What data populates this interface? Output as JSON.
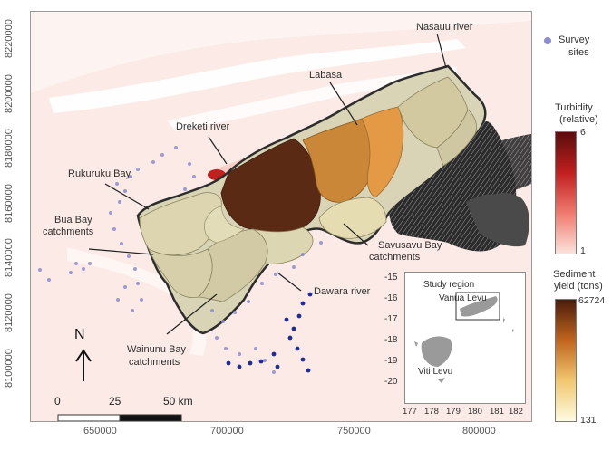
{
  "y_axis_ticks": [
    "8220000",
    "8200000",
    "8180000",
    "8160000",
    "8140000",
    "8120000",
    "8100000"
  ],
  "x_axis_ticks": [
    "650000",
    "700000",
    "750000",
    "800000"
  ],
  "place_labels": {
    "nasauu": "Nasauu river",
    "labasa": "Labasa",
    "dreketi": "Dreketi river",
    "rukuruku": "Rukuruku Bay",
    "bua_line1": "Bua Bay",
    "bua_line2": "catchments",
    "savusavu_line1": "Savusavu Bay",
    "savusavu_line2": "catchments",
    "dawara": "Dawara river",
    "wainunu_line1": "Wainunu Bay",
    "wainunu_line2": "catchments"
  },
  "north_arrow": "N",
  "scale_bar": {
    "labels": [
      "0",
      "25",
      "50 km"
    ]
  },
  "legend": {
    "survey_line1": "Survey",
    "survey_line2": "sites",
    "survey_color": "#8c8cd2",
    "turbidity_line1": "Turbidity",
    "turbidity_line2": "(relative)",
    "turbidity_max": "6",
    "turbidity_min": "1",
    "turbidity_colors": [
      "#5a0c0c",
      "#c0201f",
      "#f07a6e",
      "#fbe3dd"
    ],
    "sediment_line1": "Sediment",
    "sediment_line2": "yield (tons)",
    "sediment_max": "62724",
    "sediment_min": "131",
    "sediment_colors": [
      "#4b1c0c",
      "#c0651c",
      "#f1c76f",
      "#fdfbe0"
    ]
  },
  "inset": {
    "study_region_label": "Study region",
    "vanua_levu_label": "Vanua Levu",
    "viti_levu_label": "Viti Levu",
    "y_ticks": [
      "-15",
      "-16",
      "-17",
      "-18",
      "-19",
      "-20"
    ],
    "x_ticks": [
      "177",
      "178",
      "179",
      "180",
      "181",
      "182"
    ]
  }
}
